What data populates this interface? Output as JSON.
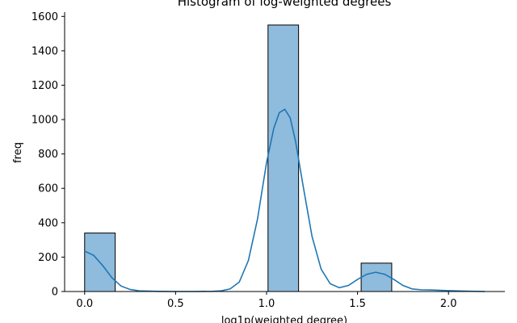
{
  "chart_data": {
    "type": "bar",
    "title": "Histogram of log-weighted degrees",
    "xlabel": "log1p(weighted degree)",
    "ylabel": "freq",
    "xlim": [
      -0.11,
      2.31
    ],
    "ylim": [
      0,
      1625
    ],
    "xticks": [
      0.0,
      0.5,
      1.0,
      1.5,
      2.0
    ],
    "xtick_labels": [
      "0.0",
      "0.5",
      "1.0",
      "1.5",
      "2.0"
    ],
    "yticks": [
      0,
      200,
      400,
      600,
      800,
      1000,
      1200,
      1400,
      1600
    ],
    "ytick_labels": [
      "0",
      "200",
      "400",
      "600",
      "800",
      "1000",
      "1200",
      "1400",
      "1600"
    ],
    "grid": false,
    "bar_color": "#8fbbdc",
    "edge_color": "#000000",
    "bins": [
      {
        "x0": 0.0,
        "x1": 0.168,
        "count": 340
      },
      {
        "x0": 1.008,
        "x1": 1.176,
        "count": 1550
      },
      {
        "x0": 1.52,
        "x1": 1.688,
        "count": 165
      }
    ],
    "kde": {
      "color": "#1f77b4",
      "x": [
        0.0,
        0.05,
        0.1,
        0.15,
        0.2,
        0.25,
        0.3,
        0.4,
        0.5,
        0.6,
        0.7,
        0.75,
        0.8,
        0.85,
        0.9,
        0.95,
        1.0,
        1.04,
        1.07,
        1.1,
        1.13,
        1.16,
        1.2,
        1.25,
        1.3,
        1.35,
        1.4,
        1.45,
        1.5,
        1.55,
        1.6,
        1.65,
        1.7,
        1.75,
        1.8,
        1.85,
        1.9,
        2.0,
        2.1,
        2.2
      ],
      "y": [
        235,
        210,
        150,
        80,
        32,
        12,
        4,
        1,
        0,
        0,
        1,
        4,
        15,
        55,
        180,
        420,
        750,
        950,
        1040,
        1060,
        1010,
        870,
        620,
        320,
        130,
        45,
        22,
        35,
        70,
        100,
        112,
        100,
        70,
        35,
        15,
        10,
        9,
        5,
        2,
        0
      ]
    }
  }
}
